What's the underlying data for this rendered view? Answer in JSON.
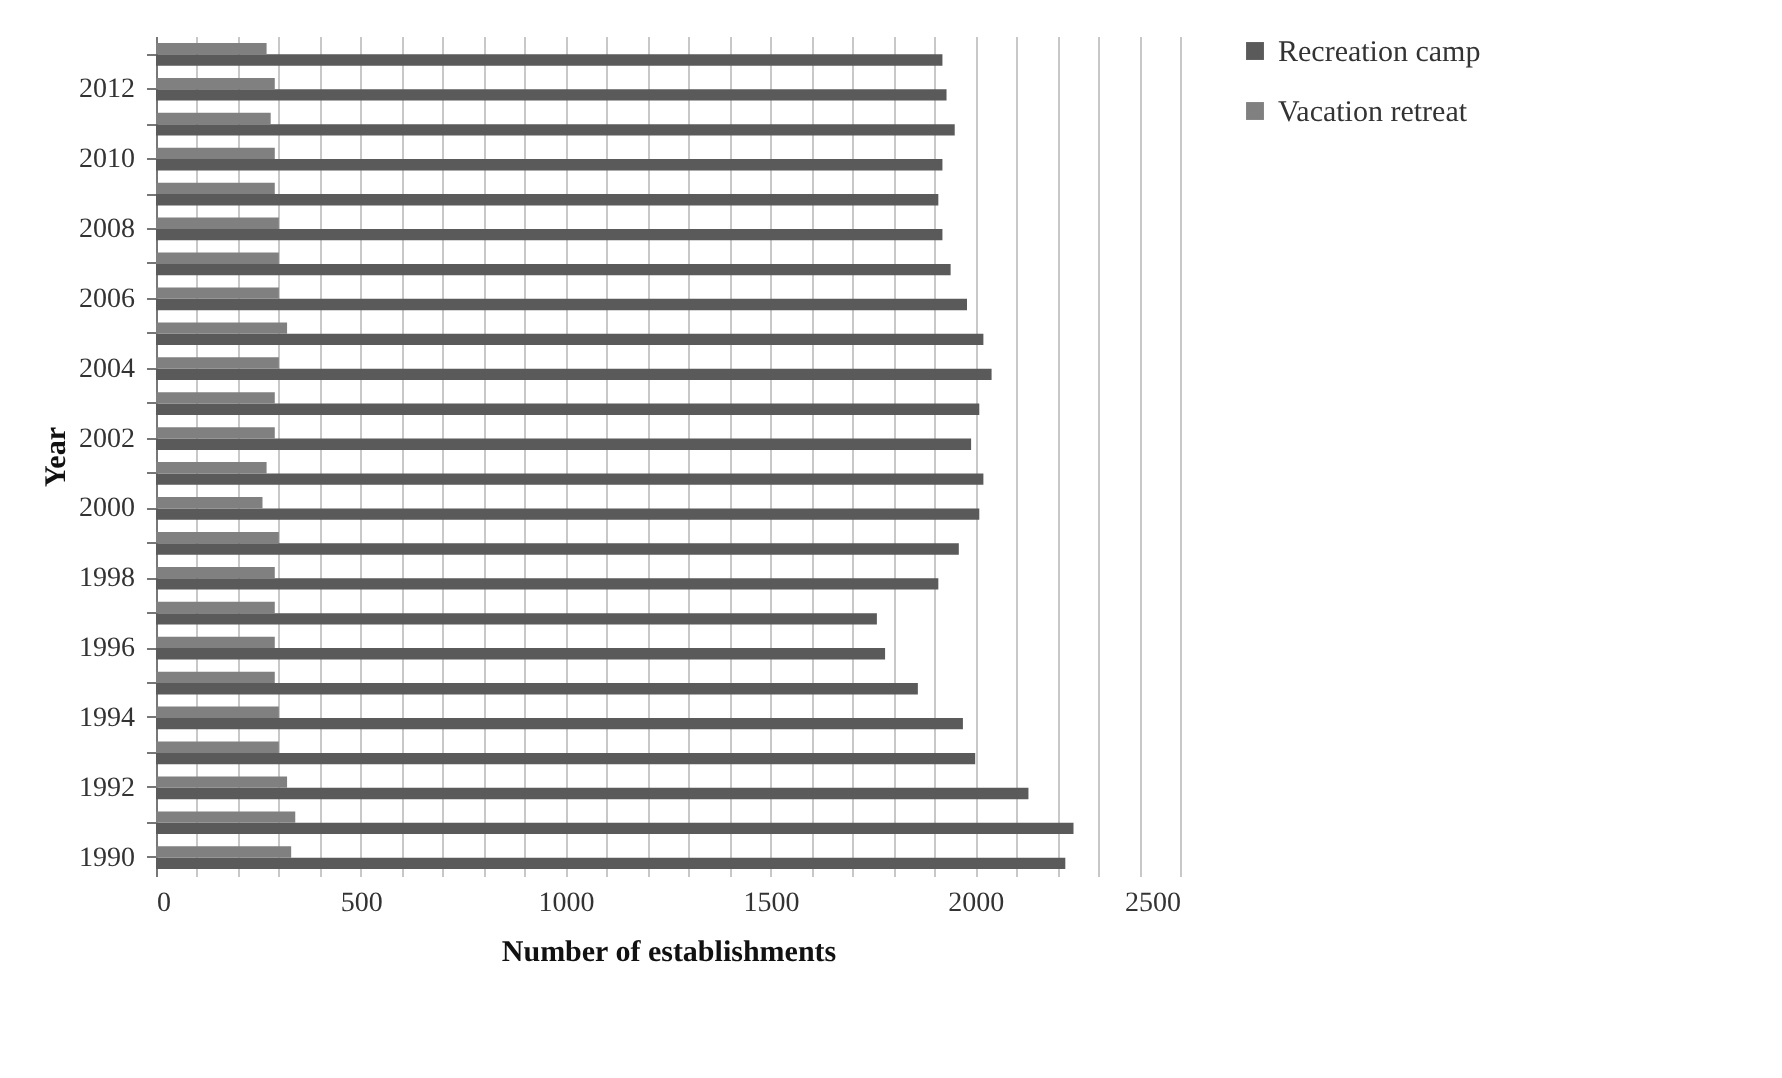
{
  "chart_data": {
    "type": "bar",
    "orientation": "horizontal",
    "xlabel": "Number of establishments",
    "ylabel": "Year",
    "categories": [
      null,
      "2012",
      null,
      "2010",
      null,
      "2008",
      null,
      "2006",
      null,
      "2004",
      null,
      "2002",
      null,
      "2000",
      null,
      "1998",
      null,
      "1996",
      null,
      "1994",
      null,
      "1992",
      null,
      "1990"
    ],
    "series": [
      {
        "name": "Recreation camp",
        "color": "#5a5a5a",
        "values": [
          1920,
          1930,
          1950,
          1920,
          1910,
          1920,
          1940,
          1980,
          2020,
          2040,
          2010,
          1990,
          2020,
          2010,
          1960,
          1910,
          1760,
          1780,
          1860,
          1970,
          2000,
          2130,
          2240,
          2220
        ]
      },
      {
        "name": "Vacation retreat",
        "color": "#808080",
        "values": [
          270,
          290,
          280,
          290,
          290,
          300,
          300,
          300,
          320,
          300,
          290,
          290,
          270,
          260,
          300,
          290,
          290,
          290,
          290,
          300,
          300,
          320,
          340,
          330
        ]
      }
    ],
    "xlim": [
      0,
      2500
    ],
    "xticks": [
      0,
      {
        "value": 100,
        "label": null
      },
      {
        "value": 200,
        "label": null
      },
      {
        "value": 300,
        "label": null
      },
      {
        "value": 400,
        "label": null
      },
      500,
      {
        "value": 600,
        "label": null
      },
      {
        "value": 700,
        "label": null
      },
      {
        "value": 800,
        "label": null
      },
      {
        "value": 900,
        "label": null
      },
      1000,
      {
        "value": 1100,
        "label": null
      },
      {
        "value": 1200,
        "label": null
      },
      {
        "value": 1300,
        "label": null
      },
      {
        "value": 1400,
        "label": null
      },
      1500,
      {
        "value": 1600,
        "label": null
      },
      {
        "value": 1700,
        "label": null
      },
      {
        "value": 1800,
        "label": null
      },
      {
        "value": 1900,
        "label": null
      },
      2000,
      {
        "value": 2100,
        "label": null
      },
      {
        "value": 2200,
        "label": null
      },
      {
        "value": 2300,
        "label": null
      },
      {
        "value": 2400,
        "label": null
      },
      2500
    ],
    "grid": "x",
    "legend": "right"
  }
}
